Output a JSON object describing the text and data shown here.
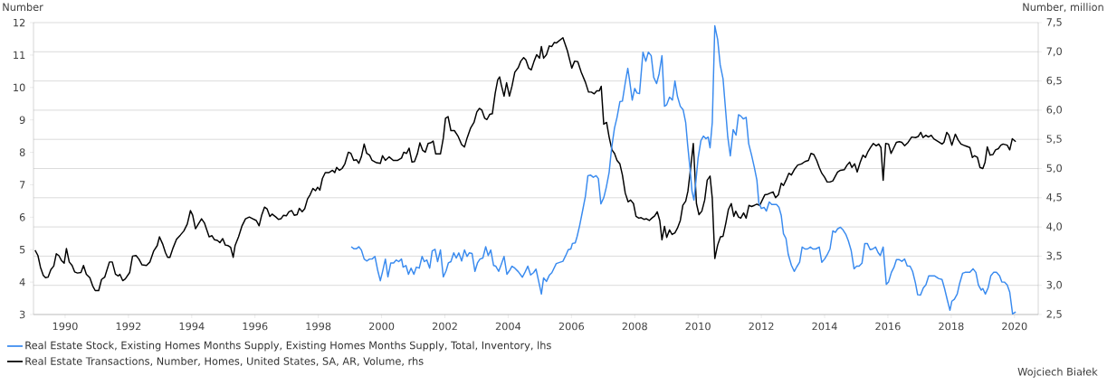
{
  "chart_data": {
    "type": "line",
    "ylabel": "Number",
    "y2label": "Number, million",
    "xlim": [
      1989,
      2020.75
    ],
    "xticks": [
      1990,
      1992,
      1994,
      1996,
      1998,
      2000,
      2002,
      2004,
      2006,
      2008,
      2010,
      2012,
      2014,
      2016,
      2018,
      2020
    ],
    "ylim": [
      3,
      12
    ],
    "yticks": [
      3,
      4,
      5,
      6,
      7,
      8,
      9,
      10,
      11,
      12
    ],
    "y2lim": [
      2.5,
      7.5
    ],
    "y2ticks": [
      {
        "value": 2.5,
        "label": "2,5"
      },
      {
        "value": 3,
        "label": "3,0"
      },
      {
        "value": 3.5,
        "label": "3,5"
      },
      {
        "value": 4,
        "label": "4,0"
      },
      {
        "value": 4.5,
        "label": "4,5"
      },
      {
        "value": 5,
        "label": "5,0"
      },
      {
        "value": 5.5,
        "label": "5,5"
      },
      {
        "value": 6,
        "label": "6,0"
      },
      {
        "value": 6.5,
        "label": "6,5"
      },
      {
        "value": 7,
        "label": "7,0"
      },
      {
        "value": 7.5,
        "label": "7,5"
      }
    ],
    "grid": true,
    "legend": "bottom",
    "marker": "none",
    "annotations": [
      "Wojciech Białek"
    ],
    "series": [
      {
        "name": "Real Estate Stock, Existing Homes Months Supply, Existing Homes Months Supply, Total, Inventory, lhs",
        "color": "#3a8bef",
        "axis": "y",
        "x": [
          1999.04,
          1999.12,
          1999.21,
          1999.28,
          1999.36,
          1999.45,
          1999.53,
          1999.62,
          1999.7,
          1999.79,
          1999.88,
          1999.96,
          2000.03,
          2000.12,
          2000.2,
          2000.29,
          2000.38,
          2000.46,
          2000.54,
          2000.63,
          2000.68,
          2000.77,
          2000.85,
          2000.93,
          2001.02,
          2001.1,
          2001.19,
          2001.28,
          2001.35,
          2001.43,
          2001.52,
          2001.6,
          2001.69,
          2001.77,
          2001.86,
          2001.95,
          2002.04,
          2002.11,
          2002.19,
          2002.28,
          2002.36,
          2002.44,
          2002.53,
          2002.62,
          2002.7,
          2002.77,
          2002.86,
          2002.95,
          2003.03,
          2003.11,
          2003.2,
          2003.29,
          2003.37,
          2003.45,
          2003.54,
          2003.61,
          2003.7,
          2003.78,
          2003.87,
          2003.96,
          2004.04,
          2004.12,
          2004.21,
          2004.32,
          2004.45,
          2004.54,
          2004.62,
          2004.71,
          2004.8,
          2004.88,
          2004.96,
          2005.05,
          2005.12,
          2005.21,
          2005.3,
          2005.38,
          2005.52,
          2005.73,
          2005.82,
          2005.9,
          2005.98,
          2006.03,
          2006.12,
          2006.18,
          2006.26,
          2006.35,
          2006.44,
          2006.52,
          2006.6,
          2006.69,
          2006.78,
          2006.85,
          2006.93,
          2007.02,
          2007.1,
          2007.19,
          2007.27,
          2007.36,
          2007.44,
          2007.53,
          2007.61,
          2007.7,
          2007.78,
          2007.84,
          2007.92,
          2008.0,
          2008.07,
          2008.15,
          2008.26,
          2008.35,
          2008.43,
          2008.52,
          2008.6,
          2008.69,
          2008.77,
          2008.86,
          2008.94,
          2009.01,
          2009.1,
          2009.19,
          2009.27,
          2009.35,
          2009.44,
          2009.53,
          2009.61,
          2009.67,
          2009.75,
          2009.81,
          2009.87,
          2009.93,
          2010.0,
          2010.09,
          2010.17,
          2010.25,
          2010.32,
          2010.38,
          2010.45,
          2010.53,
          2010.62,
          2010.7,
          2010.79,
          2010.87,
          2010.94,
          2011.02,
          2011.11,
          2011.2,
          2011.28,
          2011.35,
          2011.43,
          2011.52,
          2011.6,
          2011.69,
          2011.78,
          2011.86,
          2011.92,
          2012.0,
          2012.09,
          2012.16,
          2012.25,
          2012.33,
          2012.48,
          2012.56,
          2012.63,
          2012.7,
          2012.78,
          2012.85,
          2012.95,
          2013.04,
          2013.12,
          2013.21,
          2013.29,
          2013.38,
          2013.46,
          2013.55,
          2013.63,
          2013.72,
          2013.83,
          2013.91,
          2014.0,
          2014.08,
          2014.17,
          2014.26,
          2014.34,
          2014.41,
          2014.5,
          2014.58,
          2014.67,
          2014.75,
          2014.84,
          2014.93,
          2015.01,
          2015.09,
          2015.18,
          2015.27,
          2015.35,
          2015.44,
          2015.52,
          2015.61,
          2015.69,
          2015.76,
          2015.85,
          2015.95,
          2016.02,
          2016.11,
          2016.19,
          2016.27,
          2016.36,
          2016.44,
          2016.53,
          2016.61,
          2016.7,
          2016.78,
          2016.87,
          2016.94,
          2017.03,
          2017.12,
          2017.2,
          2017.29,
          2017.48,
          2017.6,
          2017.71,
          2017.79,
          2017.88,
          2017.96,
          2018.02,
          2018.1,
          2018.19,
          2018.27,
          2018.36,
          2018.44,
          2018.59,
          2018.69,
          2018.78,
          2018.86,
          2018.95,
          2019.0,
          2019.08,
          2019.17,
          2019.25,
          2019.34,
          2019.43,
          2019.53,
          2019.6,
          2019.68,
          2019.77,
          2019.85,
          2019.94,
          2020.04
        ],
        "values": [
          5.09,
          5.03,
          5.03,
          5.09,
          4.99,
          4.71,
          4.65,
          4.71,
          4.71,
          4.79,
          4.35,
          4.04,
          4.32,
          4.71,
          4.16,
          4.59,
          4.59,
          4.68,
          4.63,
          4.71,
          4.46,
          4.51,
          4.24,
          4.43,
          4.24,
          4.46,
          4.43,
          4.79,
          4.63,
          4.68,
          4.43,
          4.96,
          5.01,
          4.63,
          4.99,
          4.16,
          4.35,
          4.59,
          4.63,
          4.9,
          4.74,
          4.9,
          4.65,
          4.99,
          4.79,
          4.9,
          4.88,
          4.33,
          4.59,
          4.71,
          4.74,
          5.09,
          4.82,
          4.99,
          4.51,
          4.49,
          4.33,
          4.54,
          4.79,
          4.24,
          4.35,
          4.49,
          4.43,
          4.32,
          4.15,
          4.32,
          4.49,
          4.22,
          4.29,
          4.4,
          4.04,
          3.63,
          4.13,
          4.02,
          4.21,
          4.29,
          4.57,
          4.64,
          4.82,
          5.0,
          5.02,
          5.19,
          5.21,
          5.41,
          5.75,
          6.19,
          6.64,
          7.28,
          7.3,
          7.23,
          7.28,
          7.19,
          6.41,
          6.6,
          6.92,
          7.38,
          8.14,
          8.75,
          9.08,
          9.56,
          9.58,
          10.14,
          10.59,
          10.2,
          9.61,
          9.97,
          9.83,
          9.81,
          11.09,
          10.81,
          11.09,
          10.98,
          10.31,
          10.12,
          10.42,
          10.98,
          9.42,
          9.47,
          9.7,
          9.61,
          10.2,
          9.72,
          9.42,
          9.31,
          8.92,
          8.25,
          7.47,
          6.8,
          6.53,
          7.08,
          7.81,
          8.36,
          8.5,
          8.42,
          8.47,
          8.14,
          8.92,
          11.9,
          11.48,
          10.7,
          10.27,
          9.31,
          8.47,
          7.89,
          8.7,
          8.53,
          9.16,
          9.12,
          9.03,
          9.08,
          8.27,
          7.92,
          7.53,
          7.14,
          6.45,
          6.27,
          6.3,
          6.19,
          6.47,
          6.39,
          6.39,
          6.3,
          6.05,
          5.49,
          5.34,
          4.86,
          4.52,
          4.33,
          4.47,
          4.61,
          5.08,
          5.02,
          5.02,
          5.08,
          5.02,
          5.02,
          5.08,
          4.61,
          4.71,
          4.84,
          5.02,
          5.58,
          5.53,
          5.64,
          5.69,
          5.61,
          5.47,
          5.27,
          4.97,
          4.41,
          4.49,
          4.49,
          4.58,
          5.19,
          5.19,
          5.0,
          5.02,
          5.08,
          4.91,
          4.82,
          5.08,
          3.93,
          4.0,
          4.3,
          4.45,
          4.69,
          4.69,
          4.64,
          4.71,
          4.5,
          4.49,
          4.33,
          3.97,
          3.61,
          3.6,
          3.82,
          3.91,
          4.19,
          4.19,
          4.11,
          4.08,
          3.8,
          3.44,
          3.13,
          3.41,
          3.47,
          3.63,
          3.97,
          4.27,
          4.3,
          4.3,
          4.41,
          4.3,
          3.91,
          3.75,
          3.8,
          3.63,
          3.83,
          4.19,
          4.3,
          4.3,
          4.19,
          4.0,
          4.0,
          3.91,
          3.69,
          3.02,
          3.08
        ]
      },
      {
        "name": "Real Estate Transactions, Number, Homes, United States, SA, AR, Volume, rhs",
        "color": "#000000",
        "axis": "y2",
        "x": [
          1989.05,
          1989.14,
          1989.22,
          1989.31,
          1989.38,
          1989.46,
          1989.55,
          1989.64,
          1989.72,
          1989.8,
          1989.89,
          1989.97,
          1990.04,
          1990.13,
          1990.22,
          1990.3,
          1990.39,
          1990.5,
          1990.58,
          1990.67,
          1990.78,
          1990.87,
          1990.95,
          1991.06,
          1991.15,
          1991.25,
          1991.4,
          1991.49,
          1991.59,
          1991.68,
          1991.73,
          1991.82,
          1991.9,
          1992.04,
          1992.13,
          1992.24,
          1992.33,
          1992.43,
          1992.57,
          1992.68,
          1992.8,
          1992.91,
          1992.98,
          1993.08,
          1993.17,
          1993.24,
          1993.31,
          1993.41,
          1993.52,
          1993.64,
          1993.75,
          1993.86,
          1993.96,
          1994.03,
          1994.12,
          1994.21,
          1994.31,
          1994.4,
          1994.47,
          1994.55,
          1994.64,
          1994.72,
          1994.81,
          1994.89,
          1994.98,
          1995.06,
          1995.15,
          1995.23,
          1995.31,
          1995.37,
          1995.48,
          1995.59,
          1995.7,
          1995.82,
          1995.93,
          1996.04,
          1996.13,
          1996.21,
          1996.3,
          1996.38,
          1996.47,
          1996.54,
          1996.66,
          1996.74,
          1996.82,
          1996.9,
          1996.99,
          1997.07,
          1997.16,
          1997.24,
          1997.33,
          1997.4,
          1997.49,
          1997.57,
          1997.66,
          1997.74,
          1997.83,
          1997.91,
          1997.98,
          1998.05,
          1998.13,
          1998.22,
          1998.33,
          1998.45,
          1998.52,
          1998.58,
          1998.67,
          1998.75,
          1998.84,
          1998.95,
          1999.03,
          1999.12,
          1999.21,
          1999.28,
          1999.36,
          1999.45,
          1999.53,
          1999.62,
          1999.7,
          1999.84,
          1999.96,
          2000.03,
          2000.12,
          2000.24,
          2000.37,
          2000.51,
          2000.63,
          2000.7,
          2000.79,
          2000.87,
          2000.96,
          2001.04,
          2001.13,
          2001.21,
          2001.3,
          2001.38,
          2001.47,
          2001.55,
          2001.63,
          2001.71,
          2001.86,
          2001.95,
          2002.02,
          2002.1,
          2002.19,
          2002.3,
          2002.42,
          2002.53,
          2002.62,
          2002.7,
          2002.81,
          2002.92,
          2003.01,
          2003.09,
          2003.17,
          2003.26,
          2003.33,
          2003.42,
          2003.5,
          2003.59,
          2003.67,
          2003.73,
          2003.78,
          2003.87,
          2003.95,
          2004.04,
          2004.12,
          2004.21,
          2004.32,
          2004.4,
          2004.49,
          2004.56,
          2004.65,
          2004.73,
          2004.82,
          2004.9,
          2004.99,
          2005.05,
          2005.12,
          2005.21,
          2005.3,
          2005.38,
          2005.46,
          2005.52,
          2005.73,
          2005.87,
          2006.01,
          2006.1,
          2006.2,
          2006.31,
          2006.44,
          2006.54,
          2006.63,
          2006.72,
          2006.8,
          2006.88,
          2006.94,
          2007.02,
          2007.11,
          2007.19,
          2007.28,
          2007.36,
          2007.44,
          2007.53,
          2007.61,
          2007.7,
          2007.79,
          2007.87,
          2007.96,
          2008.04,
          2008.13,
          2008.2,
          2008.29,
          2008.37,
          2008.46,
          2008.54,
          2008.63,
          2008.71,
          2008.79,
          2008.86,
          2008.94,
          2009.01,
          2009.1,
          2009.18,
          2009.27,
          2009.35,
          2009.44,
          2009.52,
          2009.61,
          2009.68,
          2009.76,
          2009.85,
          2009.95,
          2010.03,
          2010.12,
          2010.21,
          2010.29,
          2010.38,
          2010.45,
          2010.53,
          2010.62,
          2010.71,
          2010.79,
          2010.88,
          2010.96,
          2011.05,
          2011.13,
          2011.19,
          2011.28,
          2011.35,
          2011.44,
          2011.52,
          2011.61,
          2011.69,
          2011.78,
          2011.86,
          2011.95,
          2012.03,
          2012.11,
          2012.2,
          2012.28,
          2012.37,
          2012.45,
          2012.54,
          2012.63,
          2012.7,
          2012.78,
          2012.87,
          2012.95,
          2013.04,
          2013.15,
          2013.27,
          2013.38,
          2013.49,
          2013.57,
          2013.66,
          2013.75,
          2013.83,
          2013.91,
          2014.0,
          2014.08,
          2014.17,
          2014.26,
          2014.34,
          2014.41,
          2014.5,
          2014.62,
          2014.71,
          2014.79,
          2014.86,
          2014.95,
          2015.03,
          2015.12,
          2015.21,
          2015.29,
          2015.37,
          2015.46,
          2015.54,
          2015.63,
          2015.71,
          2015.78,
          2015.85,
          2015.93,
          2016.02,
          2016.1,
          2016.19,
          2016.27,
          2016.36,
          2016.44,
          2016.53,
          2016.64,
          2016.75,
          2016.87,
          2016.96,
          2017.04,
          2017.11,
          2017.2,
          2017.28,
          2017.37,
          2017.45,
          2017.6,
          2017.71,
          2017.77,
          2017.86,
          2017.93,
          2018.02,
          2018.13,
          2018.22,
          2018.31,
          2018.44,
          2018.59,
          2018.67,
          2018.74,
          2018.83,
          2018.91,
          2019.0,
          2019.07,
          2019.14,
          2019.23,
          2019.32,
          2019.4,
          2019.49,
          2019.57,
          2019.64,
          2019.77,
          2019.85,
          2019.93,
          2020.04
        ],
        "values": [
          3.6,
          3.51,
          3.31,
          3.17,
          3.13,
          3.14,
          3.27,
          3.33,
          3.54,
          3.51,
          3.42,
          3.38,
          3.63,
          3.4,
          3.34,
          3.23,
          3.21,
          3.22,
          3.34,
          3.19,
          3.13,
          2.99,
          2.91,
          2.91,
          3.1,
          3.14,
          3.4,
          3.4,
          3.19,
          3.16,
          3.19,
          3.08,
          3.11,
          3.22,
          3.5,
          3.51,
          3.45,
          3.35,
          3.34,
          3.4,
          3.59,
          3.68,
          3.83,
          3.71,
          3.56,
          3.48,
          3.48,
          3.64,
          3.79,
          3.86,
          3.93,
          4.05,
          4.28,
          4.2,
          3.97,
          4.05,
          4.14,
          4.07,
          3.96,
          3.83,
          3.85,
          3.78,
          3.77,
          3.73,
          3.8,
          3.69,
          3.68,
          3.65,
          3.48,
          3.68,
          3.83,
          4.02,
          4.14,
          4.17,
          4.14,
          4.11,
          4.02,
          4.2,
          4.34,
          4.31,
          4.18,
          4.22,
          4.17,
          4.13,
          4.14,
          4.2,
          4.19,
          4.26,
          4.28,
          4.2,
          4.21,
          4.32,
          4.26,
          4.31,
          4.48,
          4.55,
          4.66,
          4.62,
          4.68,
          4.63,
          4.83,
          4.93,
          4.93,
          4.97,
          4.93,
          5.02,
          4.97,
          5.0,
          5.08,
          5.28,
          5.26,
          5.14,
          5.15,
          5.09,
          5.2,
          5.42,
          5.26,
          5.23,
          5.14,
          5.1,
          5.09,
          5.22,
          5.14,
          5.2,
          5.14,
          5.14,
          5.18,
          5.28,
          5.26,
          5.35,
          5.11,
          5.12,
          5.25,
          5.44,
          5.31,
          5.28,
          5.43,
          5.44,
          5.47,
          5.25,
          5.25,
          5.52,
          5.86,
          5.89,
          5.65,
          5.65,
          5.55,
          5.41,
          5.37,
          5.52,
          5.69,
          5.79,
          5.97,
          6.03,
          6.0,
          5.86,
          5.84,
          5.93,
          5.94,
          6.29,
          6.52,
          6.57,
          6.44,
          6.24,
          6.47,
          6.24,
          6.41,
          6.65,
          6.73,
          6.84,
          6.9,
          6.86,
          6.72,
          6.69,
          6.84,
          6.95,
          6.89,
          7.09,
          6.89,
          6.95,
          7.1,
          7.09,
          7.16,
          7.15,
          7.24,
          7.02,
          6.72,
          6.84,
          6.83,
          6.65,
          6.48,
          6.31,
          6.31,
          6.28,
          6.33,
          6.33,
          6.41,
          5.76,
          5.79,
          5.54,
          5.32,
          5.26,
          5.14,
          5.08,
          4.89,
          4.58,
          4.43,
          4.46,
          4.4,
          4.18,
          4.15,
          4.16,
          4.13,
          4.14,
          4.11,
          4.15,
          4.19,
          4.26,
          4.11,
          3.78,
          4.01,
          3.82,
          3.95,
          3.87,
          3.9,
          3.98,
          4.11,
          4.37,
          4.44,
          4.61,
          4.98,
          5.43,
          4.4,
          4.21,
          4.27,
          4.46,
          4.8,
          4.87,
          4.49,
          3.46,
          3.69,
          3.83,
          3.84,
          4.07,
          4.3,
          4.4,
          4.18,
          4.27,
          4.17,
          4.15,
          4.24,
          4.15,
          4.37,
          4.35,
          4.37,
          4.39,
          4.37,
          4.46,
          4.55,
          4.56,
          4.58,
          4.6,
          4.5,
          4.55,
          4.75,
          4.71,
          4.8,
          4.92,
          4.89,
          4.98,
          5.06,
          5.08,
          5.12,
          5.14,
          5.26,
          5.24,
          5.14,
          5.02,
          4.92,
          4.85,
          4.77,
          4.77,
          4.79,
          4.87,
          4.94,
          4.97,
          4.98,
          5.06,
          5.11,
          5.02,
          5.08,
          4.94,
          5.1,
          5.23,
          5.19,
          5.29,
          5.37,
          5.43,
          5.39,
          5.42,
          5.36,
          4.8,
          5.43,
          5.42,
          5.26,
          5.36,
          5.45,
          5.46,
          5.45,
          5.39,
          5.45,
          5.54,
          5.53,
          5.55,
          5.62,
          5.53,
          5.57,
          5.54,
          5.57,
          5.51,
          5.46,
          5.42,
          5.45,
          5.62,
          5.57,
          5.4,
          5.59,
          5.49,
          5.42,
          5.39,
          5.36,
          5.19,
          5.22,
          5.19,
          5.02,
          5.0,
          5.11,
          5.37,
          5.23,
          5.24,
          5.32,
          5.34,
          5.4,
          5.42,
          5.4,
          5.32,
          5.51,
          5.46
        ]
      }
    ]
  }
}
